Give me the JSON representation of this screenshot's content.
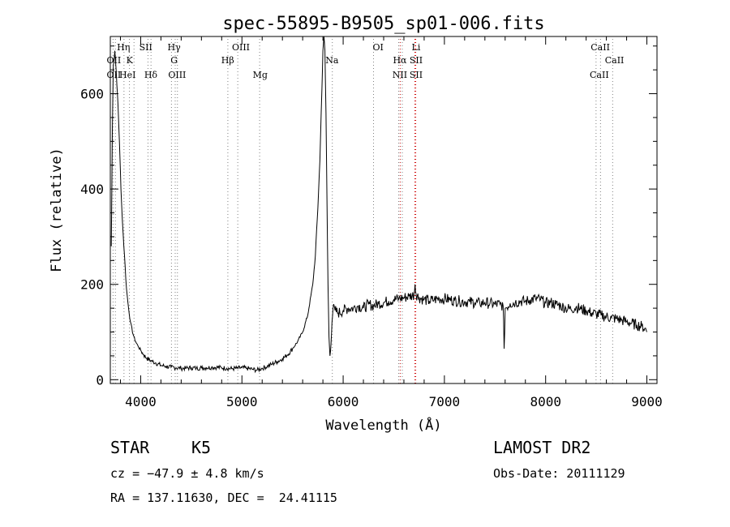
{
  "chart_data": {
    "type": "line",
    "title": "spec-55895-B9505_sp01-006.fits",
    "xlabel": "Wavelength (Å)",
    "ylabel": "Flux (relative)",
    "xlim": [
      3700,
      9100
    ],
    "ylim": [
      -8,
      720
    ],
    "x_ticks": [
      4000,
      5000,
      6000,
      7000,
      8000,
      9000
    ],
    "y_ticks": [
      0,
      200,
      400,
      600
    ],
    "grid": false,
    "legend": "none",
    "colors": {
      "spectrum": "#000000",
      "line_marker": "#808080",
      "halpha_marker": "#cc0000"
    },
    "series": [
      {
        "x": [
          3710,
          3720,
          3730,
          3745,
          3760,
          3775,
          3790,
          3805,
          3820,
          3840,
          3860,
          3880,
          3900,
          3925,
          3950,
          3975,
          4000,
          4030,
          4060,
          4100,
          4150,
          4200,
          4250,
          4300,
          4350,
          4400,
          4450,
          4500,
          4550,
          4600,
          4650,
          4700,
          4750,
          4800,
          4850,
          4900,
          4950,
          5000,
          5050,
          5100,
          5150,
          5200,
          5250,
          5300,
          5350,
          5400,
          5450,
          5500,
          5550,
          5600,
          5650,
          5700,
          5725,
          5750,
          5770,
          5790,
          5800,
          5810,
          5820,
          5830,
          5840,
          5850,
          5860,
          5870,
          5880,
          5890,
          5900,
          5920,
          5950,
          6000,
          6050,
          6100,
          6150,
          6200,
          6250,
          6300,
          6350,
          6400,
          6450,
          6500,
          6550,
          6600,
          6650,
          6700,
          6710,
          6720,
          6750,
          6800,
          6850,
          6900,
          6950,
          7000,
          7050,
          7100,
          7150,
          7200,
          7250,
          7300,
          7350,
          7400,
          7450,
          7500,
          7550,
          7580,
          7590,
          7600,
          7650,
          7700,
          7750,
          7800,
          7850,
          7900,
          7950,
          8000,
          8050,
          8100,
          8150,
          8200,
          8250,
          8300,
          8350,
          8400,
          8450,
          8500,
          8550,
          8600,
          8650,
          8700,
          8750,
          8800,
          8850,
          8900,
          8950,
          8980,
          9000
        ],
        "y": [
          280,
          520,
          660,
          690,
          640,
          580,
          500,
          400,
          330,
          260,
          190,
          150,
          120,
          95,
          80,
          70,
          62,
          52,
          45,
          40,
          35,
          30,
          28,
          26,
          25,
          24,
          24,
          25,
          24,
          25,
          25,
          26,
          26,
          25,
          24,
          23,
          24,
          25,
          24,
          22,
          20,
          24,
          28,
          33,
          38,
          44,
          52,
          65,
          80,
          100,
          135,
          200,
          260,
          360,
          460,
          610,
          690,
          720,
          690,
          560,
          380,
          200,
          90,
          50,
          75,
          120,
          150,
          145,
          140,
          145,
          150,
          150,
          155,
          150,
          158,
          155,
          160,
          162,
          165,
          168,
          170,
          172,
          175,
          178,
          200,
          180,
          172,
          168,
          165,
          168,
          170,
          170,
          168,
          166,
          165,
          164,
          163,
          162,
          160,
          162,
          160,
          158,
          158,
          155,
          65,
          150,
          160,
          162,
          165,
          164,
          168,
          170,
          168,
          160,
          162,
          158,
          155,
          150,
          148,
          152,
          148,
          145,
          140,
          138,
          135,
          132,
          130,
          128,
          125,
          122,
          118,
          115,
          112,
          108,
          100
        ]
      }
    ],
    "annotations": [
      "OII",
      "OII",
      "Hη",
      "HeI",
      "K",
      "SII",
      "Hδ",
      "Hγ",
      "G",
      "OIII",
      "Hβ",
      "OIII",
      "Mg",
      "Na",
      "OI",
      "Hα",
      "NII",
      "Li",
      "SII",
      "SII",
      "CaII",
      "CaII",
      "CaII"
    ],
    "info": {
      "class": "STAR",
      "subclass": "K5",
      "survey": "LAMOST DR2",
      "velocity": "cz = −47.9 ± 4.8 km/s",
      "obs_date": "Obs-Date: 20111129",
      "coords": "RA = 137.11630, DEC =  24.41115"
    }
  }
}
